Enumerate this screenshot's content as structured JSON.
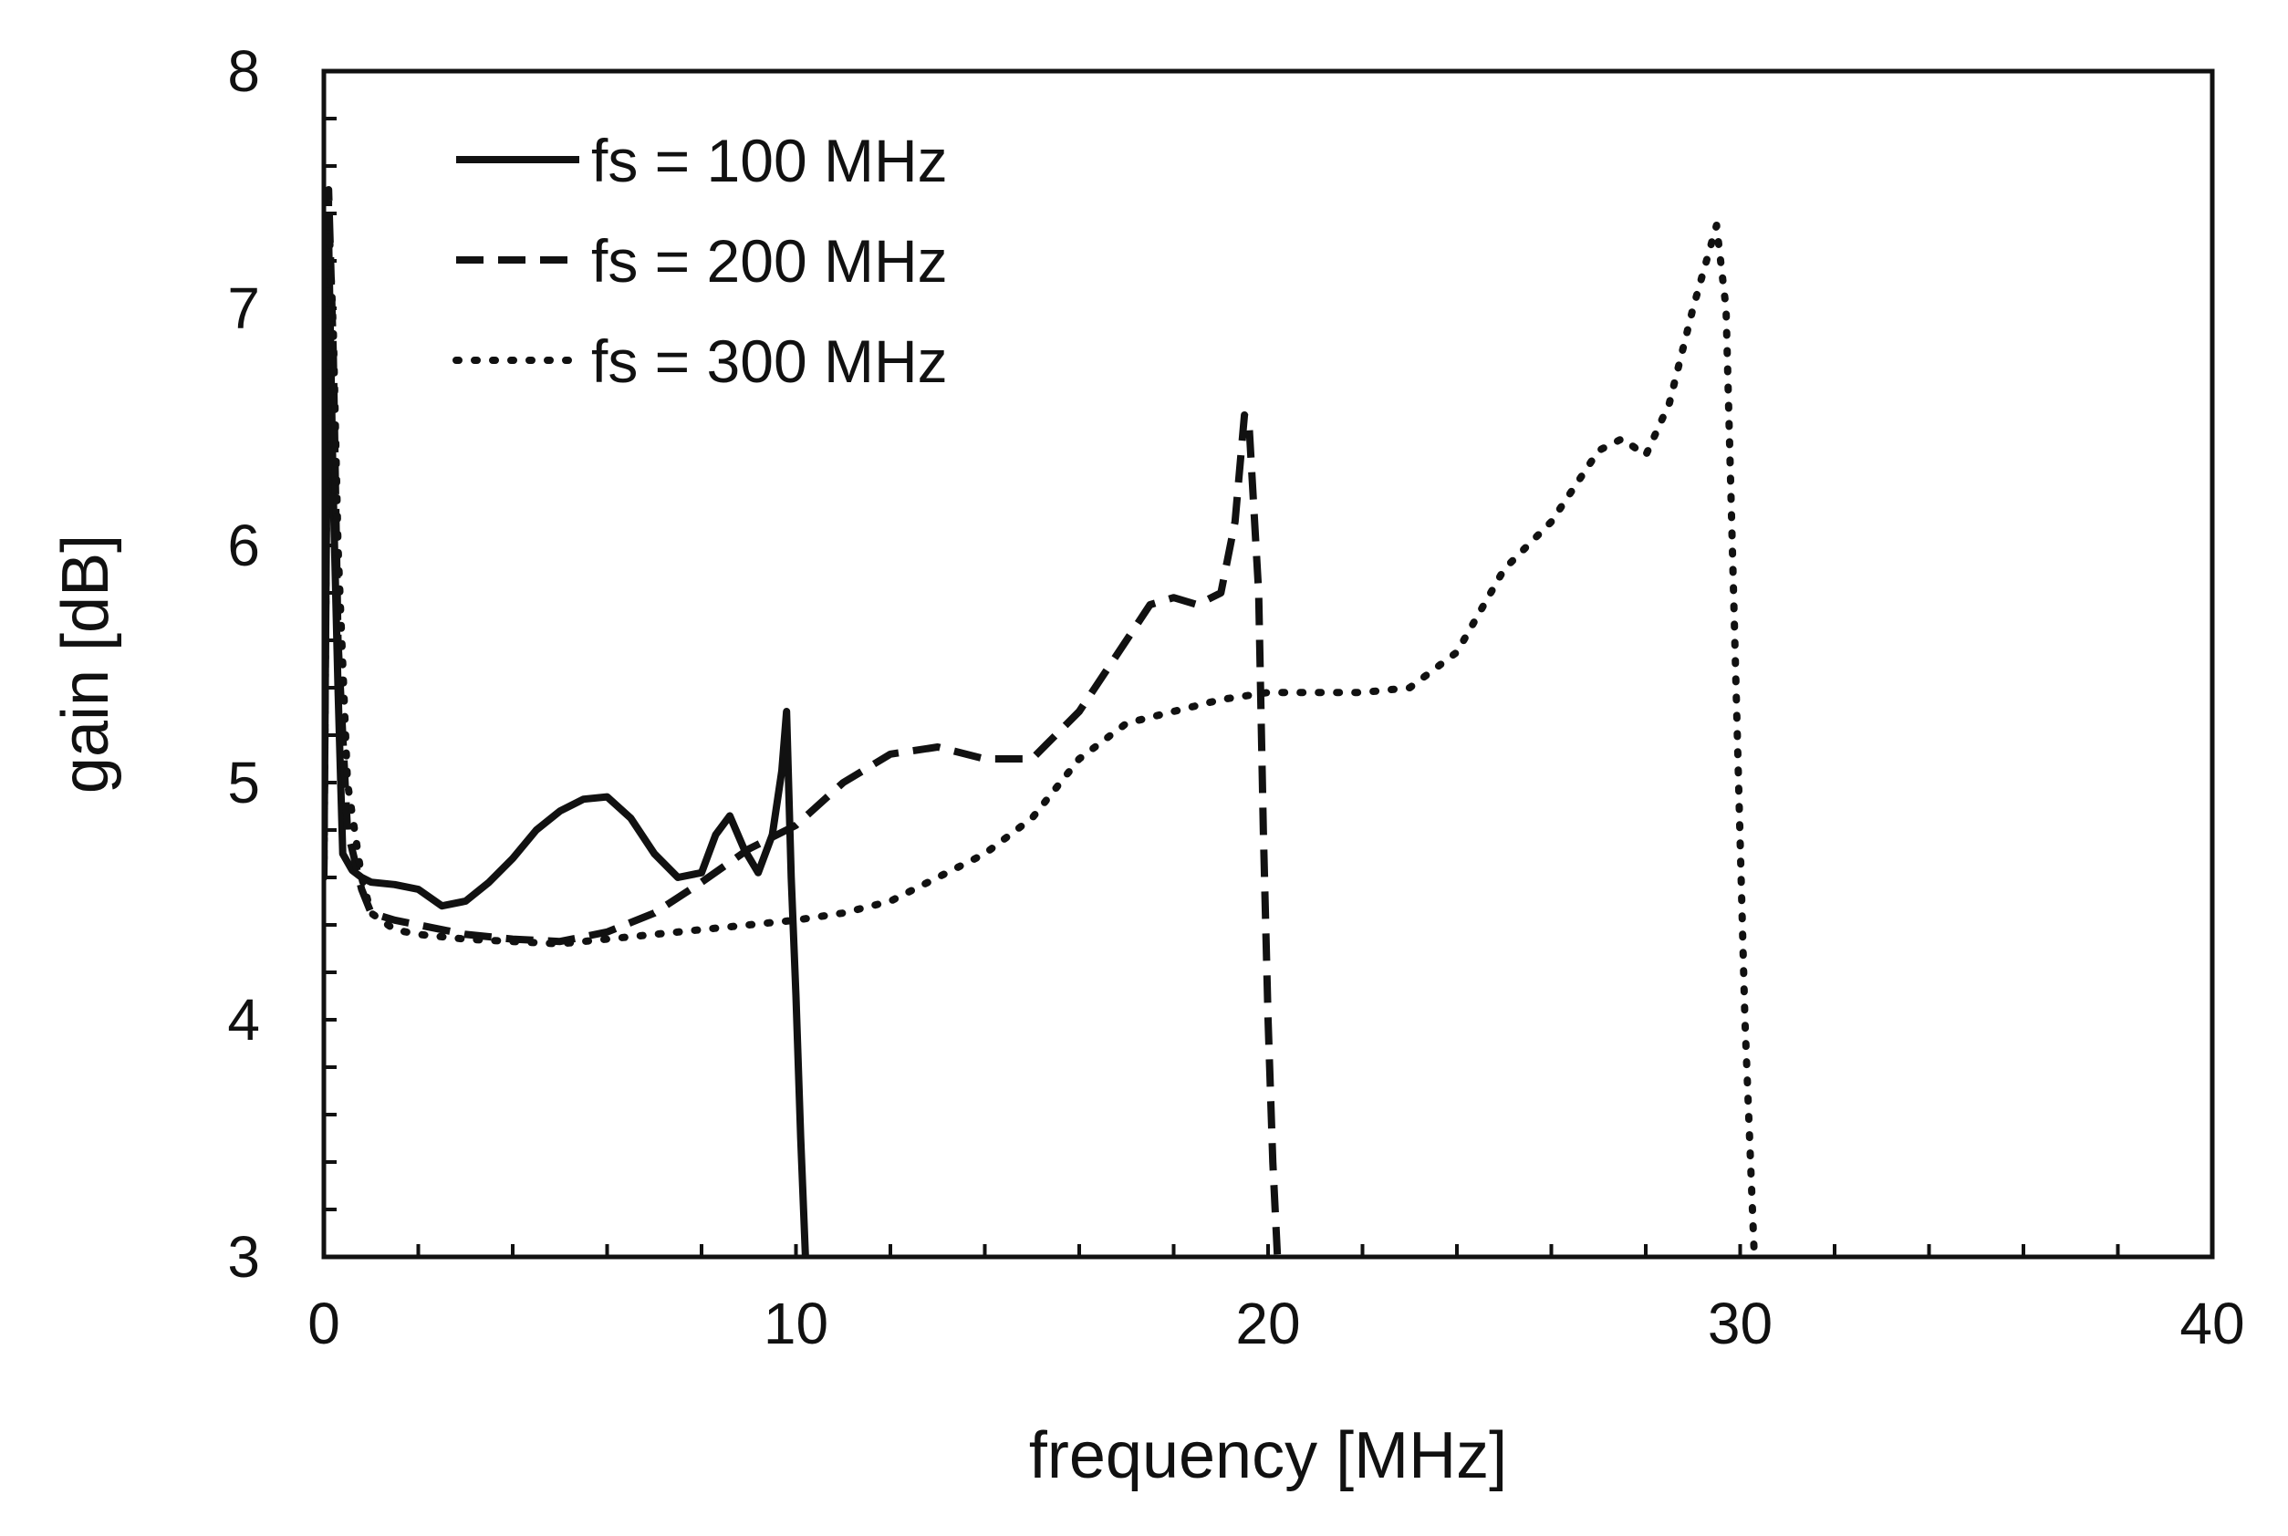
{
  "chart_data": {
    "type": "line",
    "title": "",
    "xlabel": "frequency [MHz]",
    "ylabel": "gain [dB]",
    "xlim": [
      0,
      40
    ],
    "ylim": [
      3,
      8
    ],
    "x_ticks": [
      0,
      10,
      20,
      30,
      40
    ],
    "y_ticks": [
      3,
      4,
      5,
      6,
      7,
      8
    ],
    "x_minor_step": 2,
    "y_minor_step": 0.2,
    "grid": false,
    "legend_position": "top-left",
    "series": [
      {
        "name": "fs = 100 MHz",
        "style": "solid",
        "x": [
          0.0,
          0.1,
          0.2,
          0.3,
          0.4,
          0.6,
          0.8,
          1.0,
          1.5,
          2.0,
          2.5,
          3.0,
          3.5,
          4.0,
          4.5,
          5.0,
          5.5,
          6.0,
          6.5,
          7.0,
          7.5,
          8.0,
          8.3,
          8.6,
          8.9,
          9.2,
          9.5,
          9.7,
          9.8,
          9.9,
          10.0,
          10.1,
          10.2
        ],
        "values": [
          4.6,
          7.3,
          6.2,
          5.4,
          4.7,
          4.63,
          4.6,
          4.58,
          4.57,
          4.55,
          4.48,
          4.5,
          4.58,
          4.68,
          4.8,
          4.88,
          4.93,
          4.94,
          4.85,
          4.7,
          4.6,
          4.62,
          4.78,
          4.86,
          4.72,
          4.62,
          4.78,
          5.05,
          5.3,
          4.6,
          4.1,
          3.5,
          3.0
        ]
      },
      {
        "name": "fs = 200 MHz",
        "style": "dashed",
        "x": [
          0.0,
          0.1,
          0.2,
          0.3,
          0.5,
          0.8,
          1.0,
          1.5,
          2.0,
          3.0,
          4.0,
          5.0,
          6.0,
          7.0,
          8.0,
          9.0,
          10.0,
          11.0,
          12.0,
          13.0,
          14.0,
          15.0,
          16.0,
          17.0,
          17.5,
          18.0,
          18.5,
          19.0,
          19.3,
          19.5,
          19.6,
          19.8,
          19.9,
          20.0,
          20.1,
          20.2
        ],
        "values": [
          4.6,
          7.5,
          6.8,
          5.6,
          4.8,
          4.55,
          4.45,
          4.42,
          4.4,
          4.36,
          4.34,
          4.33,
          4.37,
          4.45,
          4.58,
          4.72,
          4.82,
          5.0,
          5.12,
          5.15,
          5.1,
          5.1,
          5.3,
          5.6,
          5.75,
          5.78,
          5.75,
          5.8,
          6.1,
          6.55,
          6.5,
          5.8,
          4.8,
          4.0,
          3.4,
          3.0
        ]
      },
      {
        "name": "fs = 300 MHz",
        "style": "dotted",
        "x": [
          0.0,
          0.1,
          0.2,
          0.3,
          0.5,
          0.8,
          1.0,
          1.5,
          2.0,
          3.0,
          4.0,
          5.0,
          6.0,
          7.0,
          8.0,
          9.0,
          10.0,
          11.0,
          12.0,
          13.0,
          14.0,
          15.0,
          16.0,
          17.0,
          18.0,
          19.0,
          20.0,
          21.0,
          22.0,
          23.0,
          24.0,
          25.0,
          26.0,
          27.0,
          27.5,
          28.0,
          28.5,
          29.0,
          29.5,
          29.7,
          29.9,
          30.1,
          30.3
        ],
        "values": [
          4.6,
          7.4,
          6.9,
          6.0,
          5.0,
          4.6,
          4.45,
          4.38,
          4.36,
          4.34,
          4.33,
          4.32,
          4.34,
          4.36,
          4.38,
          4.4,
          4.42,
          4.45,
          4.5,
          4.6,
          4.7,
          4.85,
          5.1,
          5.25,
          5.3,
          5.35,
          5.38,
          5.38,
          5.38,
          5.4,
          5.55,
          5.9,
          6.1,
          6.4,
          6.45,
          6.38,
          6.6,
          7.0,
          7.35,
          7.0,
          5.5,
          4.0,
          3.0
        ]
      }
    ]
  }
}
